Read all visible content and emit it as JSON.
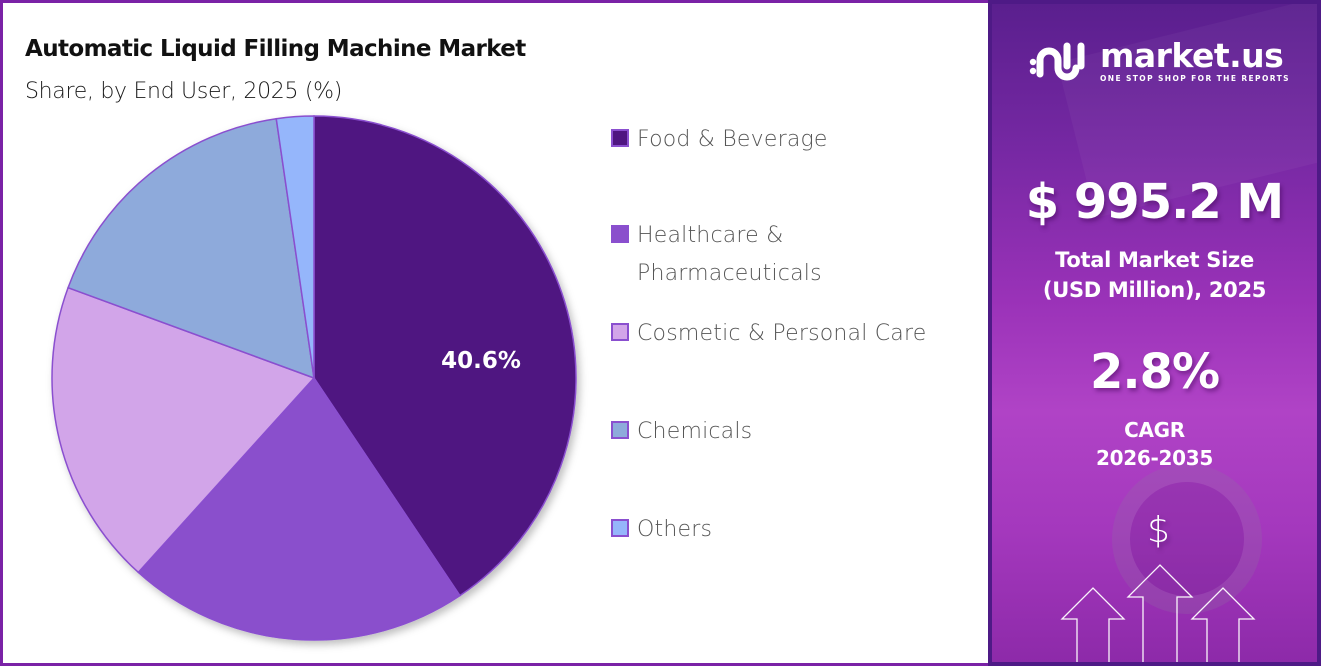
{
  "header": {
    "title": "Automatic Liquid Filling Machine Market",
    "subtitle": "Share, by End User, 2025 (%)"
  },
  "legend": {
    "items": [
      {
        "label_line1": "Food & Beverage",
        "label_line2": "",
        "color": "#4f1681"
      },
      {
        "label_line1": "Healthcare &",
        "label_line2": "Pharmaceuticals",
        "color": "#8a4fcc"
      },
      {
        "label_line1": "Cosmetic & Personal Care",
        "label_line2": "",
        "color": "#d2a5e9"
      },
      {
        "label_line1": "Chemicals",
        "label_line2": "",
        "color": "#8eaadb"
      },
      {
        "label_line1": "Others",
        "label_line2": "",
        "color": "#95b6fb"
      }
    ]
  },
  "pie": {
    "highlight_label": "40.6%"
  },
  "sidebar": {
    "brand_name": "market.us",
    "brand_tagline": "ONE STOP SHOP FOR THE REPORTS",
    "market_size_value": "$ 995.2 M",
    "market_size_caption_line1": "Total Market Size",
    "market_size_caption_line2": "(USD Million), 2025",
    "cagr_value": "2.8%",
    "cagr_caption_line1": "CAGR",
    "cagr_caption_line2": "2026-2035",
    "dollar_symbol": "$",
    "icons": [
      "market-us-logo-icon",
      "dollar-icon",
      "up-arrow-icon"
    ]
  },
  "colors": {
    "border": "#7a22a6",
    "slice_stroke": "#8a4fcf",
    "sidebar_dark": "#4e1a86",
    "sidebar_light": "#b043c6"
  },
  "chart_data": {
    "type": "pie",
    "title": "Automatic Liquid Filling Machine Market",
    "subtitle": "Share, by End User, 2025 (%)",
    "categories": [
      "Food & Beverage",
      "Healthcare & Pharmaceuticals",
      "Cosmetic & Personal Care",
      "Chemicals",
      "Others"
    ],
    "values": [
      40.6,
      21.1,
      18.9,
      17.1,
      2.3
    ],
    "colors": [
      "#4f1681",
      "#8a4fcc",
      "#d2a5e9",
      "#8eaadb",
      "#95b6fb"
    ],
    "labeled_values": {
      "Food & Beverage": "40.6%"
    },
    "start_angle": "12 o'clock, clockwise",
    "legend_position": "right"
  }
}
